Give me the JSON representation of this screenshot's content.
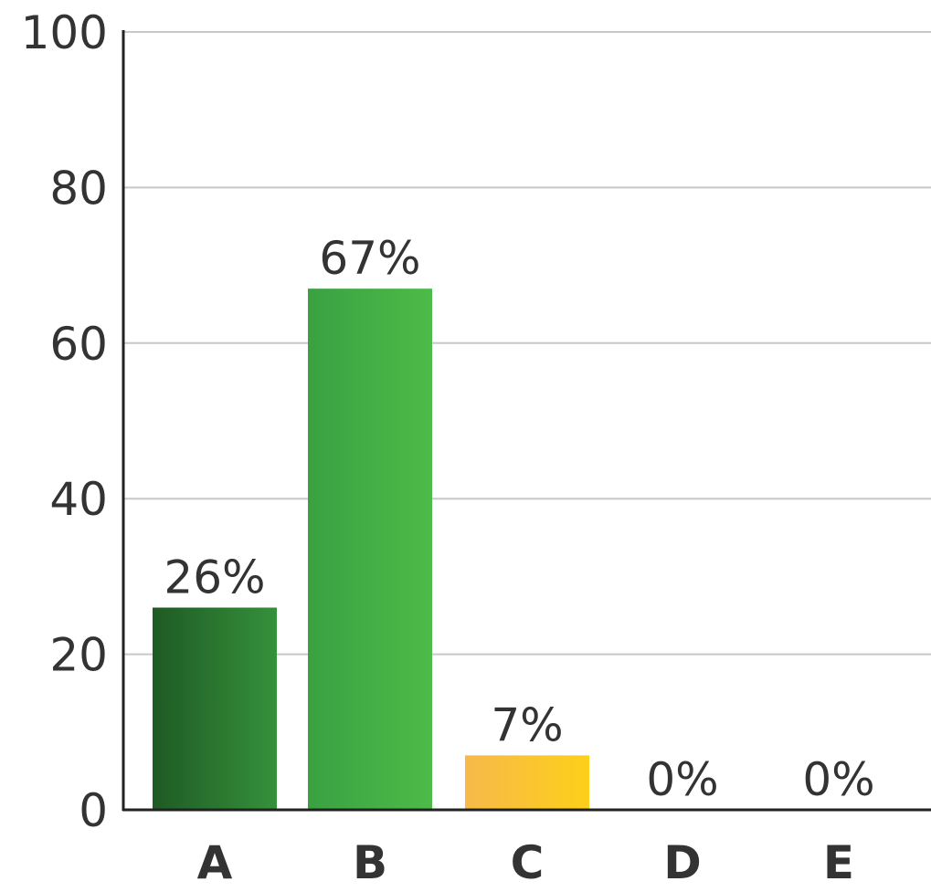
{
  "chart_data": {
    "type": "bar",
    "title": "",
    "xlabel": "",
    "ylabel": "",
    "ylim": [
      0,
      100
    ],
    "yticks": [
      0,
      20,
      40,
      60,
      80,
      100
    ],
    "grid": true,
    "categories": [
      "A",
      "B",
      "C",
      "D",
      "E"
    ],
    "values": [
      26,
      67,
      7,
      0,
      0
    ],
    "data_labels": [
      "26%",
      "67%",
      "7%",
      "0%",
      "0%"
    ],
    "bar_colors": [
      [
        "#1f5a25",
        "#35913b"
      ],
      [
        "#3aa142",
        "#4cbb48"
      ],
      [
        "#f6b94a",
        "#fdd01a"
      ],
      [
        "#cccccc",
        "#cccccc"
      ],
      [
        "#cccccc",
        "#cccccc"
      ]
    ],
    "grid_color": "#c8c8c8",
    "axis_color": "#222222"
  }
}
